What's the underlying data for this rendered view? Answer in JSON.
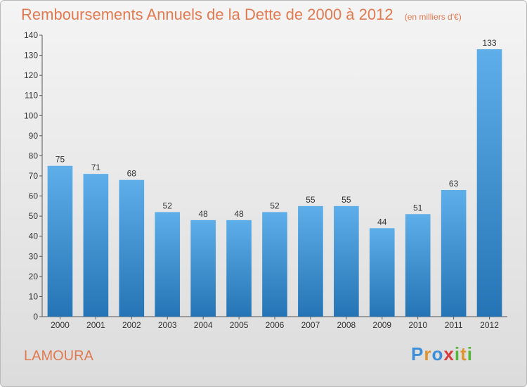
{
  "title": "Remboursements Annuels de la Dette de 2000 à 2012",
  "unit": "(en milliers d'€)",
  "commune": "LAMOURA",
  "logo": {
    "letters": [
      "P",
      "r",
      "o",
      "x",
      "i",
      "t",
      "i"
    ],
    "colors": [
      "#3b8fd8",
      "#e0932d",
      "#3b8fd8",
      "#d83b3b",
      "#55b73a",
      "#e0932d",
      "#55b73a"
    ]
  },
  "colors": {
    "accent": "#e07a51",
    "bar_light": "#5daee9",
    "bar_dark": "#2574b5"
  },
  "chart_data": {
    "type": "bar",
    "categories": [
      "2000",
      "2001",
      "2002",
      "2003",
      "2004",
      "2005",
      "2006",
      "2007",
      "2008",
      "2009",
      "2010",
      "2011",
      "2012"
    ],
    "values": [
      75,
      71,
      68,
      52,
      48,
      48,
      52,
      55,
      55,
      44,
      51,
      63,
      133
    ],
    "title": "Remboursements Annuels de la Dette de 2000 à 2012",
    "xlabel": "",
    "ylabel": "",
    "ylim": [
      0,
      140
    ],
    "yticks": [
      0,
      10,
      20,
      30,
      40,
      50,
      60,
      70,
      80,
      90,
      100,
      110,
      120,
      130,
      140
    ],
    "grid": false,
    "data_labels": true
  }
}
